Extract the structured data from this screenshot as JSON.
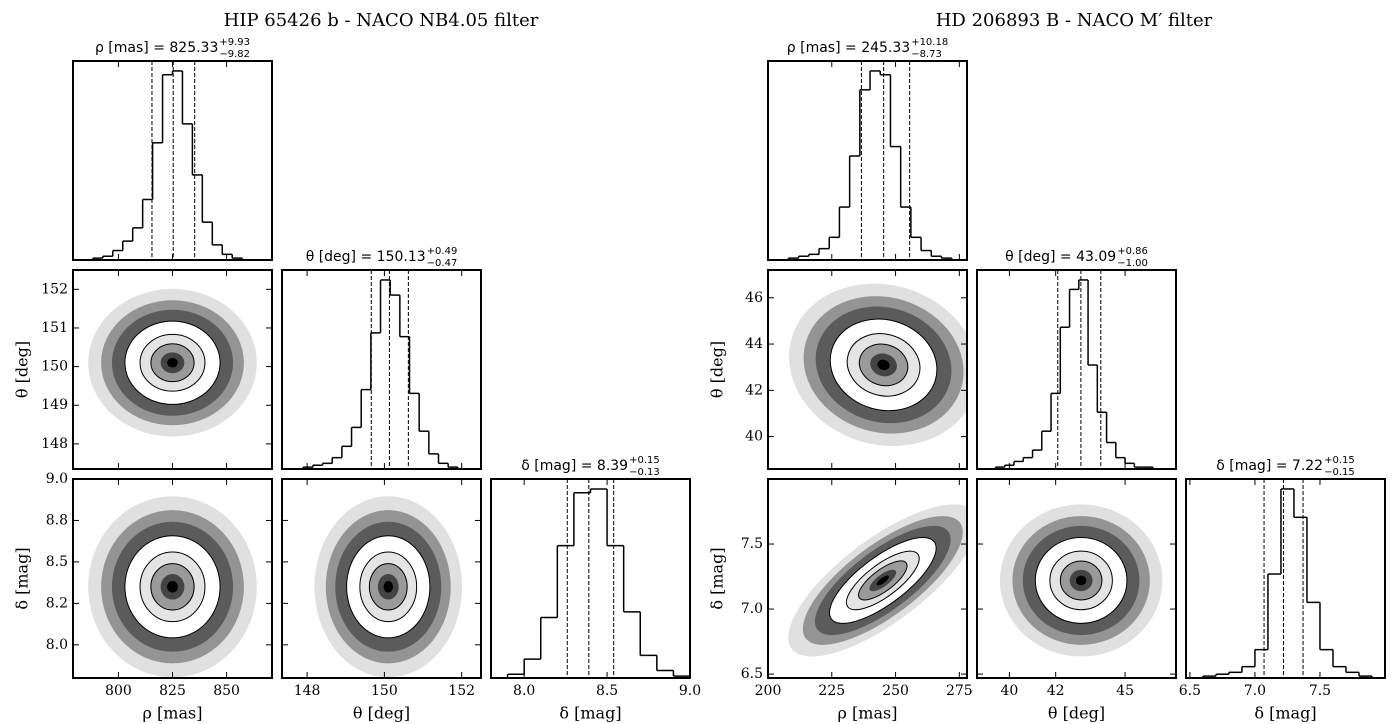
{
  "figures": [
    {
      "title": "HIP 65426 b - NACO NB4.05 filter",
      "variables": [
        {
          "label": "ρ [mas]",
          "title_label": "ρ [mas] =",
          "value": 825.33,
          "err_plus": {
            "value": 9.93,
            "label": "+9.93"
          },
          "err_minus": {
            "value": 9.82,
            "label": "−9.82"
          },
          "lim": [
            779,
            871
          ],
          "xticks": [
            800,
            825,
            850
          ],
          "bins": [
            779,
            783.6,
            788.2,
            792.8,
            797.4,
            802,
            806.6,
            811.2,
            815.8,
            820.4,
            825,
            829.6,
            834.2,
            838.8,
            843.4,
            848,
            852.6,
            857.2,
            861.8,
            866.4,
            871
          ],
          "counts": [
            0,
            0,
            1,
            2,
            5,
            10,
            17,
            32,
            62,
            98,
            100,
            72,
            45,
            20,
            8,
            3,
            1,
            0,
            0,
            0
          ]
        },
        {
          "label": "θ [deg]",
          "title_label": "θ [deg] =",
          "value": 150.13,
          "err_plus": {
            "value": 0.49,
            "label": "+0.49"
          },
          "err_minus": {
            "value": 0.47,
            "label": "−0.47"
          },
          "lim": [
            147.35,
            152.5
          ],
          "xticks": [
            148,
            150,
            152
          ],
          "yticks": [
            148,
            149,
            150,
            151,
            152
          ],
          "bins": [
            147.4,
            147.65,
            147.9,
            148.15,
            148.4,
            148.65,
            148.9,
            149.15,
            149.4,
            149.65,
            149.9,
            150.15,
            150.4,
            150.65,
            150.9,
            151.15,
            151.4,
            151.65,
            151.9,
            152.15,
            152.4
          ],
          "counts": [
            0,
            0,
            1,
            2,
            3,
            6,
            12,
            22,
            42,
            72,
            100,
            92,
            70,
            40,
            20,
            8,
            3,
            1,
            0,
            0
          ]
        },
        {
          "label": "δ [mag]",
          "title_label": "δ [mag] =",
          "value": 8.39,
          "err_plus": {
            "value": 0.15,
            "label": "+0.15"
          },
          "err_minus": {
            "value": 0.13,
            "label": "−0.13"
          },
          "lim": [
            7.8,
            9.0
          ],
          "xticks": [
            {
              "value": 8,
              "label": "8.0"
            },
            8.5,
            {
              "value": 9,
              "label": "9.0"
            }
          ],
          "yticks": [
            {
              "value": 9,
              "label": "9.0"
            },
            {
              "value": 8.75,
              "label": "8.8"
            },
            8.5,
            {
              "value": 8.25,
              "label": "8.2"
            },
            {
              "value": 8,
              "label": "8.0"
            }
          ],
          "bins": [
            7.8,
            7.9,
            8.0,
            8.1,
            8.2,
            8.3,
            8.4,
            8.5,
            8.6,
            8.7,
            8.8,
            8.9,
            9.0
          ],
          "counts": [
            0,
            2,
            10,
            32,
            70,
            98,
            100,
            70,
            35,
            12,
            4,
            1
          ]
        }
      ],
      "pairs": [
        {
          "mean": [
            825,
            150.1
          ],
          "std": [
            10,
            0.49
          ],
          "corr": 0
        },
        {
          "mean": [
            825,
            8.35
          ],
          "std": [
            10,
            0.14
          ],
          "corr": 0
        },
        {
          "mean": [
            150.1,
            8.35
          ],
          "std": [
            0.49,
            0.14
          ],
          "corr": 0
        }
      ]
    },
    {
      "title": "HD 206893 B - NACO M′ filter",
      "variables": [
        {
          "label": "ρ [mas]",
          "title_label": "ρ [mas] =",
          "value": 245.33,
          "err_plus": {
            "value": 10.18,
            "label": "+10.18"
          },
          "err_minus": {
            "value": 8.73,
            "label": "−8.73"
          },
          "lim": [
            200,
            278
          ],
          "xticks": [
            200,
            225,
            250,
            275
          ],
          "bins": [
            200,
            204,
            208,
            212,
            216,
            220,
            224,
            228,
            232,
            236,
            240,
            244,
            248,
            252,
            256,
            260,
            264,
            268,
            272,
            276
          ],
          "counts": [
            0,
            0,
            1,
            2,
            3,
            6,
            12,
            28,
            55,
            90,
            100,
            98,
            60,
            28,
            12,
            5,
            2,
            1,
            0
          ]
        },
        {
          "label": "θ [deg]",
          "title_label": "θ [deg] =",
          "value": 43.09,
          "err_plus": {
            "value": 0.86,
            "label": "+0.86"
          },
          "err_minus": {
            "value": 1.0,
            "label": "−1.00"
          },
          "lim": [
            38.6,
            47.2
          ],
          "xticks": [
            40,
            42,
            45
          ],
          "yticks": [
            40,
            42,
            44,
            46
          ],
          "bins": [
            38.6,
            39.0,
            39.4,
            39.8,
            40.2,
            40.6,
            41.0,
            41.4,
            41.8,
            42.2,
            42.6,
            43.0,
            43.4,
            43.8,
            44.2,
            44.6,
            45.0,
            45.4,
            45.8,
            46.2,
            46.6,
            47.0
          ],
          "counts": [
            0,
            0,
            1,
            2,
            4,
            6,
            10,
            20,
            40,
            75,
            95,
            100,
            55,
            30,
            14,
            6,
            3,
            1,
            1,
            0,
            0
          ]
        },
        {
          "label": "δ [mag]",
          "title_label": "δ [mag] =",
          "value": 7.22,
          "err_plus": {
            "value": 0.15,
            "label": "+0.15"
          },
          "err_minus": {
            "value": 0.15,
            "label": "−0.15"
          },
          "lim": [
            6.47,
            8.0
          ],
          "xticks": [
            6.5,
            {
              "value": 7,
              "label": "7.0"
            },
            7.5
          ],
          "yticks": [
            6.5,
            {
              "value": 7,
              "label": "7.0"
            },
            7.5
          ],
          "bins": [
            6.5,
            6.6,
            6.7,
            6.8,
            6.9,
            7.0,
            7.1,
            7.2,
            7.3,
            7.4,
            7.5,
            7.6,
            7.7,
            7.8,
            7.9,
            8.0
          ],
          "counts": [
            0,
            1,
            2,
            3,
            6,
            15,
            55,
            100,
            85,
            40,
            15,
            6,
            3,
            1,
            0
          ]
        }
      ],
      "pairs": [
        {
          "mean": [
            245.3,
            43.1
          ],
          "std": [
            9.5,
            0.9
          ],
          "corr": -0.1
        },
        {
          "mean": [
            245,
            7.22
          ],
          "std": [
            9.5,
            0.15
          ],
          "corr": 0.75
        },
        {
          "mean": [
            43.1,
            7.22
          ],
          "std": [
            0.9,
            0.15
          ],
          "corr": 0
        }
      ]
    }
  ]
}
